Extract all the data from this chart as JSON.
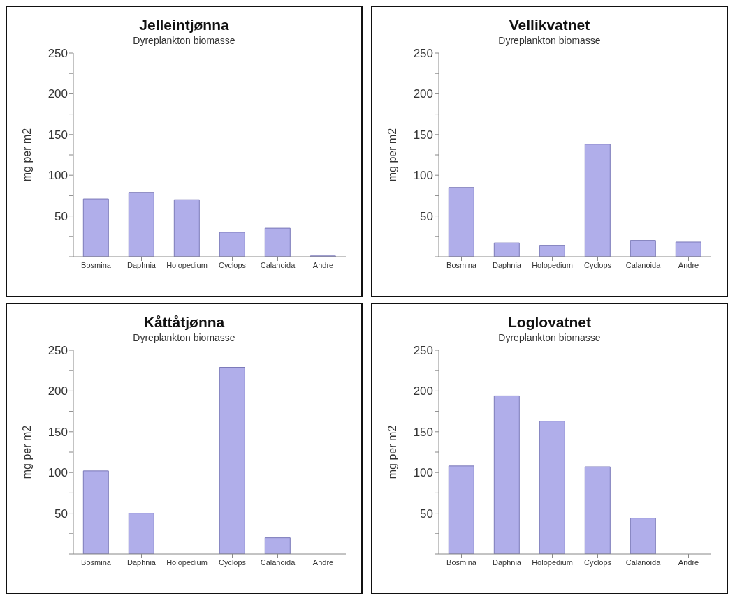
{
  "chart_data": [
    {
      "type": "bar",
      "title": "Jelleintjønna",
      "subtitle": "Dyreplankton biomasse",
      "ylabel": "mg per m2",
      "categories": [
        "Bosmina",
        "Daphnia",
        "Holopedium",
        "Cyclops",
        "Calanoida",
        "Andre"
      ],
      "values": [
        71,
        79,
        70,
        30,
        35,
        1
      ],
      "color": "#b0aeea",
      "ylim": [
        0,
        250
      ],
      "yticks": [
        {
          "value": 0,
          "label": null
        },
        {
          "value": 25,
          "label": null
        },
        50,
        {
          "value": 75,
          "label": null
        },
        100,
        {
          "value": 125,
          "label": null
        },
        150,
        {
          "value": 175,
          "label": null
        },
        200,
        {
          "value": 225,
          "label": null
        },
        250
      ]
    },
    {
      "type": "bar",
      "title": "Vellikvatnet",
      "subtitle": "Dyreplankton biomasse",
      "ylabel": "mg per m2",
      "categories": [
        "Bosmina",
        "Daphnia",
        "Holopedium",
        "Cyclops",
        "Calanoida",
        "Andre"
      ],
      "values": [
        85,
        17,
        14,
        138,
        20,
        18
      ],
      "color": "#b0aeea",
      "ylim": [
        0,
        250
      ],
      "yticks": [
        {
          "value": 0,
          "label": null
        },
        {
          "value": 25,
          "label": null
        },
        50,
        {
          "value": 75,
          "label": null
        },
        100,
        {
          "value": 125,
          "label": null
        },
        150,
        {
          "value": 175,
          "label": null
        },
        200,
        {
          "value": 225,
          "label": null
        },
        250
      ]
    },
    {
      "type": "bar",
      "title": "Kåttåtjønna",
      "subtitle": "Dyreplankton biomasse",
      "ylabel": "mg per m2",
      "categories": [
        "Bosmina",
        "Daphnia",
        "Holopedium",
        "Cyclops",
        "Calanoida",
        "Andre"
      ],
      "values": [
        102,
        50,
        0,
        229,
        20,
        0
      ],
      "color": "#b0aeea",
      "ylim": [
        0,
        250
      ],
      "yticks": [
        {
          "value": 0,
          "label": null
        },
        {
          "value": 25,
          "label": null
        },
        50,
        {
          "value": 75,
          "label": null
        },
        100,
        {
          "value": 125,
          "label": null
        },
        150,
        {
          "value": 175,
          "label": null
        },
        200,
        {
          "value": 225,
          "label": null
        },
        250
      ]
    },
    {
      "type": "bar",
      "title": "Loglovatnet",
      "subtitle": "Dyreplankton biomasse",
      "ylabel": "mg per m2",
      "categories": [
        "Bosmina",
        "Daphnia",
        "Holopedium",
        "Cyclops",
        "Calanoida",
        "Andre"
      ],
      "values": [
        108,
        194,
        163,
        107,
        44,
        0
      ],
      "color": "#b0aeea",
      "ylim": [
        0,
        250
      ],
      "yticks": [
        {
          "value": 0,
          "label": null
        },
        {
          "value": 25,
          "label": null
        },
        50,
        {
          "value": 75,
          "label": null
        },
        100,
        {
          "value": 125,
          "label": null
        },
        150,
        {
          "value": 175,
          "label": null
        },
        200,
        {
          "value": 225,
          "label": null
        },
        250
      ]
    }
  ]
}
